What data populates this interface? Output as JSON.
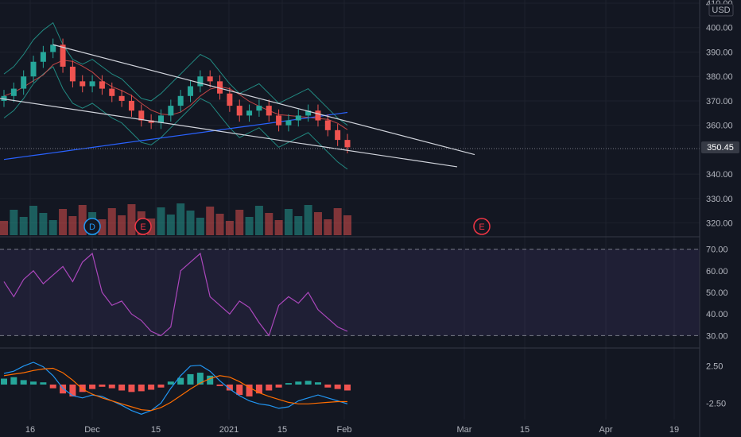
{
  "chart_data": [
    {
      "type": "candlestick",
      "currency": "USD",
      "last_price": "350.45",
      "x_labels": [
        "16",
        "Dec",
        "15",
        "2021",
        "15",
        "Feb",
        "Mar",
        "15",
        "Apr",
        "19"
      ],
      "y_ticks": [
        "410.00",
        "400.00",
        "390.00",
        "380.00",
        "370.00",
        "360.00",
        "340.00",
        "330.00",
        "320.00"
      ],
      "ylim": [
        315,
        410
      ],
      "close_trend": [
        372,
        375,
        380,
        386,
        390,
        393,
        384,
        378,
        376,
        378,
        375,
        372,
        370,
        366,
        362,
        361,
        364,
        368,
        372,
        376,
        380,
        378,
        373,
        368,
        364,
        366,
        368,
        364,
        360,
        362,
        364,
        366,
        362,
        358,
        354,
        351
      ],
      "event_markers": [
        {
          "label": "D",
          "color": "#2196f3"
        },
        {
          "label": "E",
          "color": "#f23645"
        },
        {
          "label": "E",
          "color": "#f23645"
        }
      ],
      "grid": true
    },
    {
      "type": "line",
      "indicator": "RSI",
      "y_ticks": [
        "70.00",
        "60.00",
        "50.00",
        "40.00",
        "30.00"
      ],
      "ylim": [
        25,
        75
      ],
      "upper_band": 70,
      "lower_band": 30,
      "values": [
        55,
        48,
        56,
        60,
        54,
        58,
        62,
        55,
        64,
        68,
        50,
        44,
        46,
        40,
        37,
        32,
        30,
        34,
        60,
        64,
        68,
        48,
        44,
        40,
        46,
        43,
        36,
        30,
        44,
        48,
        45,
        50,
        42,
        38,
        34,
        32
      ]
    },
    {
      "type": "bar",
      "indicator": "MACD",
      "y_ticks": [
        "2.50",
        "-2.50"
      ],
      "ylim": [
        -4.5,
        4.5
      ],
      "histogram": [
        0.8,
        1.0,
        0.6,
        0.4,
        0.3,
        -0.5,
        -1.2,
        -1.6,
        -1.0,
        -0.6,
        -0.3,
        -0.5,
        -0.8,
        -1.0,
        -0.9,
        -0.7,
        -0.4,
        0.4,
        0.9,
        1.4,
        1.6,
        1.2,
        -0.2,
        -0.8,
        -1.4,
        -1.6,
        -1.2,
        -0.8,
        -0.4,
        0.2,
        0.4,
        0.5,
        0.3,
        -0.4,
        -0.6,
        -0.8
      ],
      "macd_line": [
        1.5,
        1.8,
        2.5,
        3.0,
        2.4,
        1.2,
        -0.5,
        -1.5,
        -1.8,
        -1.4,
        -1.6,
        -2.2,
        -2.8,
        -3.5,
        -4.0,
        -3.5,
        -2.5,
        -0.5,
        1.2,
        2.5,
        2.6,
        1.8,
        0.5,
        -0.6,
        -1.5,
        -2.2,
        -2.6,
        -2.8,
        -3.2,
        -3.0,
        -2.2,
        -1.8,
        -1.4,
        -1.8,
        -2.2,
        -2.6
      ],
      "signal_line": [
        1.2,
        1.4,
        1.6,
        1.9,
        2.1,
        2.2,
        1.6,
        0.6,
        -0.6,
        -1.3,
        -1.8,
        -2.2,
        -2.6,
        -3.0,
        -3.4,
        -3.5,
        -3.1,
        -2.4,
        -1.5,
        -0.6,
        0.2,
        0.8,
        1.2,
        1.0,
        0.4,
        -0.4,
        -1.1,
        -1.6,
        -2.0,
        -2.4,
        -2.6,
        -2.6,
        -2.5,
        -2.4,
        -2.3,
        -2.3
      ]
    }
  ],
  "colors": {
    "up": "#26a69a",
    "down": "#ef5350",
    "rsi": "#ab47bc",
    "macd": "#2196f3",
    "signal": "#ff6d00",
    "bollinger": "#26a69a",
    "sma": "#2962ff",
    "trendline": "#d1d4dc"
  }
}
